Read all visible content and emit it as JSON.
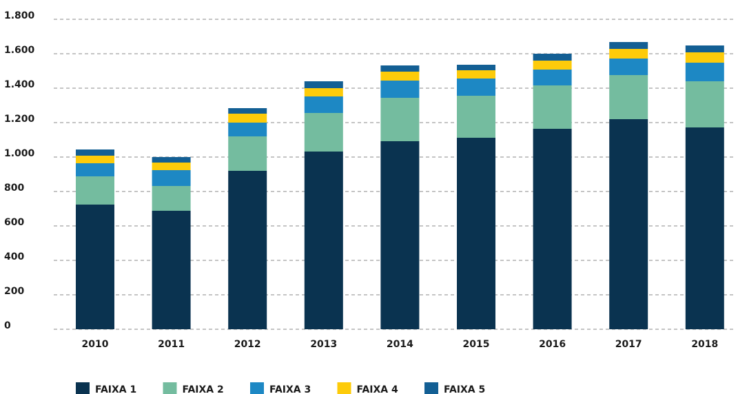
{
  "chart_data": {
    "type": "bar",
    "stacked": true,
    "categories": [
      "2010",
      "2011",
      "2012",
      "2013",
      "2014",
      "2015",
      "2016",
      "2017",
      "2018"
    ],
    "series": [
      {
        "name": "FAIXA 1",
        "color": "#0a3350",
        "values": [
          724,
          688,
          920,
          1032,
          1092,
          1112,
          1164,
          1220,
          1172
        ]
      },
      {
        "name": "FAIXA 2",
        "color": "#74bc9f",
        "values": [
          164,
          144,
          200,
          224,
          252,
          244,
          252,
          256,
          268
        ]
      },
      {
        "name": "FAIXA 3",
        "color": "#1d88c4",
        "values": [
          76,
          92,
          80,
          96,
          100,
          100,
          92,
          96,
          108
        ]
      },
      {
        "name": "FAIXA 4",
        "color": "#fdcb0a",
        "values": [
          44,
          44,
          52,
          48,
          52,
          48,
          52,
          56,
          60
        ]
      },
      {
        "name": "FAIXA 5",
        "color": "#135f94",
        "values": [
          36,
          32,
          32,
          40,
          36,
          32,
          40,
          40,
          40
        ]
      }
    ],
    "ylim": [
      0,
      1800
    ],
    "yticks": [
      0,
      200,
      400,
      600,
      800,
      {
        "value": 1000,
        "label": "1.000"
      },
      {
        "value": 1200,
        "label": "1.200"
      },
      {
        "value": 1400,
        "label": "1.400"
      },
      {
        "value": 1600,
        "label": "1.600"
      },
      {
        "value": 1800,
        "label": "1.800"
      }
    ],
    "grid": true,
    "legend": "bottom"
  }
}
